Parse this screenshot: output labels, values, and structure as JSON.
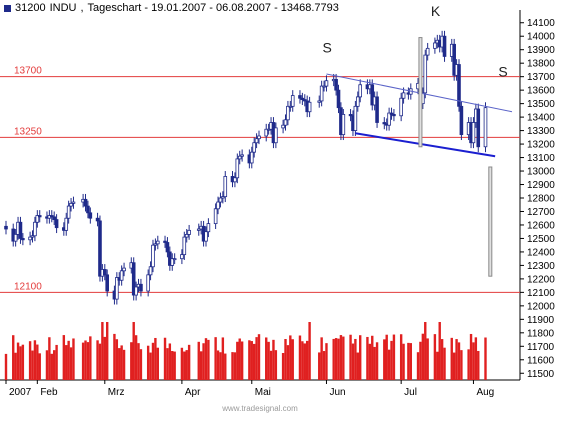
{
  "header": {
    "symbol": "31200",
    "name": "INDU",
    "period_label": "Tageschart - 19.01.2007 - 06.08.2007 - 13468.7793"
  },
  "footer": {
    "watermark": "www.tradesignal.com"
  },
  "colors": {
    "candle_body": "#1f2a8a",
    "level_line": "#e33b3b",
    "trend_line": "#5a63c8",
    "neckline": "#1b1fd0",
    "projection_bar": "#8a8a8a",
    "volume": "#e02020",
    "axis": "#000000"
  },
  "chart_data": {
    "type": "candlestick",
    "title": "INDU",
    "y_axis": {
      "position": "right",
      "ylim": [
        11450,
        14150
      ],
      "ticks": [
        11500,
        11600,
        11700,
        11800,
        11900,
        12000,
        12100,
        12200,
        12300,
        12400,
        12500,
        12600,
        12700,
        12800,
        12900,
        13000,
        13100,
        13200,
        13300,
        13400,
        13500,
        13600,
        13700,
        13800,
        13900,
        14000,
        14100
      ]
    },
    "x_axis": {
      "labels": [
        {
          "label": "2007",
          "date": "2007-01-19"
        },
        {
          "label": "Feb",
          "date": "2007-02-01"
        },
        {
          "label": "Mrz",
          "date": "2007-03-01"
        },
        {
          "label": "Apr",
          "date": "2007-04-02"
        },
        {
          "label": "Mai",
          "date": "2007-05-01"
        },
        {
          "label": "Jun",
          "date": "2007-06-01"
        },
        {
          "label": "Jul",
          "date": "2007-07-02"
        },
        {
          "label": "Aug",
          "date": "2007-08-01"
        }
      ],
      "range": [
        "2007-01-19",
        "2007-08-17"
      ]
    },
    "closes": [
      {
        "date": "2007-01-19",
        "close": 12570
      },
      {
        "date": "2007-01-22",
        "close": 12480
      },
      {
        "date": "2007-01-23",
        "close": 12530
      },
      {
        "date": "2007-01-24",
        "close": 12620
      },
      {
        "date": "2007-01-25",
        "close": 12500
      },
      {
        "date": "2007-01-26",
        "close": 12490
      },
      {
        "date": "2007-01-29",
        "close": 12510
      },
      {
        "date": "2007-01-30",
        "close": 12520
      },
      {
        "date": "2007-01-31",
        "close": 12620
      },
      {
        "date": "2007-02-01",
        "close": 12670
      },
      {
        "date": "2007-02-02",
        "close": 12660
      },
      {
        "date": "2007-02-05",
        "close": 12650
      },
      {
        "date": "2007-02-06",
        "close": 12670
      },
      {
        "date": "2007-02-07",
        "close": 12660
      },
      {
        "date": "2007-02-08",
        "close": 12640
      },
      {
        "date": "2007-02-09",
        "close": 12580
      },
      {
        "date": "2007-02-12",
        "close": 12560
      },
      {
        "date": "2007-02-13",
        "close": 12650
      },
      {
        "date": "2007-02-14",
        "close": 12740
      },
      {
        "date": "2007-02-15",
        "close": 12760
      },
      {
        "date": "2007-02-16",
        "close": 12770
      },
      {
        "date": "2007-02-20",
        "close": 12790
      },
      {
        "date": "2007-02-21",
        "close": 12740
      },
      {
        "date": "2007-02-22",
        "close": 12690
      },
      {
        "date": "2007-02-23",
        "close": 12650
      },
      {
        "date": "2007-02-26",
        "close": 12630
      },
      {
        "date": "2007-02-27",
        "close": 12220
      },
      {
        "date": "2007-02-28",
        "close": 12270
      },
      {
        "date": "2007-03-01",
        "close": 12230
      },
      {
        "date": "2007-03-02",
        "close": 12110
      },
      {
        "date": "2007-03-05",
        "close": 12050
      },
      {
        "date": "2007-03-06",
        "close": 12210
      },
      {
        "date": "2007-03-07",
        "close": 12190
      },
      {
        "date": "2007-03-08",
        "close": 12260
      },
      {
        "date": "2007-03-09",
        "close": 12280
      },
      {
        "date": "2007-03-12",
        "close": 12320
      },
      {
        "date": "2007-03-13",
        "close": 12080
      },
      {
        "date": "2007-03-14",
        "close": 12140
      },
      {
        "date": "2007-03-15",
        "close": 12160
      },
      {
        "date": "2007-03-16",
        "close": 12110
      },
      {
        "date": "2007-03-19",
        "close": 12230
      },
      {
        "date": "2007-03-20",
        "close": 12290
      },
      {
        "date": "2007-03-21",
        "close": 12450
      },
      {
        "date": "2007-03-22",
        "close": 12460
      },
      {
        "date": "2007-03-23",
        "close": 12480
      },
      {
        "date": "2007-03-26",
        "close": 12470
      },
      {
        "date": "2007-03-27",
        "close": 12400
      },
      {
        "date": "2007-03-28",
        "close": 12300
      },
      {
        "date": "2007-03-29",
        "close": 12350
      },
      {
        "date": "2007-03-30",
        "close": 12350
      },
      {
        "date": "2007-04-02",
        "close": 12380
      },
      {
        "date": "2007-04-03",
        "close": 12510
      },
      {
        "date": "2007-04-04",
        "close": 12530
      },
      {
        "date": "2007-04-05",
        "close": 12560
      },
      {
        "date": "2007-04-09",
        "close": 12570
      },
      {
        "date": "2007-04-10",
        "close": 12590
      },
      {
        "date": "2007-04-11",
        "close": 12480
      },
      {
        "date": "2007-04-12",
        "close": 12550
      },
      {
        "date": "2007-04-13",
        "close": 12610
      },
      {
        "date": "2007-04-16",
        "close": 12720
      },
      {
        "date": "2007-04-17",
        "close": 12770
      },
      {
        "date": "2007-04-18",
        "close": 12800
      },
      {
        "date": "2007-04-19",
        "close": 12810
      },
      {
        "date": "2007-04-20",
        "close": 12960
      },
      {
        "date": "2007-04-23",
        "close": 12920
      },
      {
        "date": "2007-04-24",
        "close": 12950
      },
      {
        "date": "2007-04-25",
        "close": 13090
      },
      {
        "date": "2007-04-26",
        "close": 13110
      },
      {
        "date": "2007-04-27",
        "close": 13120
      },
      {
        "date": "2007-04-30",
        "close": 13060
      },
      {
        "date": "2007-05-01",
        "close": 13140
      },
      {
        "date": "2007-05-02",
        "close": 13210
      },
      {
        "date": "2007-05-03",
        "close": 13240
      },
      {
        "date": "2007-05-04",
        "close": 13260
      },
      {
        "date": "2007-05-07",
        "close": 13310
      },
      {
        "date": "2007-05-08",
        "close": 13310
      },
      {
        "date": "2007-05-09",
        "close": 13360
      },
      {
        "date": "2007-05-10",
        "close": 13210
      },
      {
        "date": "2007-05-11",
        "close": 13320
      },
      {
        "date": "2007-05-14",
        "close": 13340
      },
      {
        "date": "2007-05-15",
        "close": 13380
      },
      {
        "date": "2007-05-16",
        "close": 13480
      },
      {
        "date": "2007-05-17",
        "close": 13480
      },
      {
        "date": "2007-05-18",
        "close": 13560
      },
      {
        "date": "2007-05-21",
        "close": 13540
      },
      {
        "date": "2007-05-22",
        "close": 13530
      },
      {
        "date": "2007-05-23",
        "close": 13520
      },
      {
        "date": "2007-05-24",
        "close": 13440
      },
      {
        "date": "2007-05-25",
        "close": 13510
      },
      {
        "date": "2007-05-29",
        "close": 13520
      },
      {
        "date": "2007-05-30",
        "close": 13630
      },
      {
        "date": "2007-05-31",
        "close": 13630
      },
      {
        "date": "2007-06-01",
        "close": 13670
      },
      {
        "date": "2007-06-04",
        "close": 13680
      },
      {
        "date": "2007-06-05",
        "close": 13600
      },
      {
        "date": "2007-06-06",
        "close": 13470
      },
      {
        "date": "2007-06-07",
        "close": 13270
      },
      {
        "date": "2007-06-08",
        "close": 13420
      },
      {
        "date": "2007-06-11",
        "close": 13410
      },
      {
        "date": "2007-06-12",
        "close": 13300
      },
      {
        "date": "2007-06-13",
        "close": 13480
      },
      {
        "date": "2007-06-14",
        "close": 13550
      },
      {
        "date": "2007-06-15",
        "close": 13640
      },
      {
        "date": "2007-06-18",
        "close": 13610
      },
      {
        "date": "2007-06-19",
        "close": 13640
      },
      {
        "date": "2007-06-20",
        "close": 13490
      },
      {
        "date": "2007-06-21",
        "close": 13550
      },
      {
        "date": "2007-06-22",
        "close": 13360
      },
      {
        "date": "2007-06-25",
        "close": 13350
      },
      {
        "date": "2007-06-26",
        "close": 13340
      },
      {
        "date": "2007-06-27",
        "close": 13430
      },
      {
        "date": "2007-06-28",
        "close": 13420
      },
      {
        "date": "2007-06-29",
        "close": 13410
      },
      {
        "date": "2007-07-02",
        "close": 13540
      },
      {
        "date": "2007-07-03",
        "close": 13580
      },
      {
        "date": "2007-07-05",
        "close": 13570
      },
      {
        "date": "2007-07-06",
        "close": 13610
      },
      {
        "date": "2007-07-09",
        "close": 13650
      },
      {
        "date": "2007-07-10",
        "close": 13500
      },
      {
        "date": "2007-07-11",
        "close": 13580
      },
      {
        "date": "2007-07-12",
        "close": 13860
      },
      {
        "date": "2007-07-13",
        "close": 13910
      },
      {
        "date": "2007-07-16",
        "close": 13950
      },
      {
        "date": "2007-07-17",
        "close": 13970
      },
      {
        "date": "2007-07-18",
        "close": 13920
      },
      {
        "date": "2007-07-19",
        "close": 14000
      },
      {
        "date": "2007-07-20",
        "close": 13850
      },
      {
        "date": "2007-07-23",
        "close": 13940
      },
      {
        "date": "2007-07-24",
        "close": 13710
      },
      {
        "date": "2007-07-25",
        "close": 13790
      },
      {
        "date": "2007-07-26",
        "close": 13480
      },
      {
        "date": "2007-07-27",
        "close": 13270
      },
      {
        "date": "2007-07-30",
        "close": 13360
      },
      {
        "date": "2007-07-31",
        "close": 13210
      },
      {
        "date": "2007-08-01",
        "close": 13360
      },
      {
        "date": "2007-08-02",
        "close": 13460
      },
      {
        "date": "2007-08-03",
        "close": 13180
      },
      {
        "date": "2007-08-06",
        "close": 13470
      }
    ],
    "horizontal_levels": [
      {
        "value": 13700,
        "label": "13700"
      },
      {
        "value": 13250,
        "label": "13250"
      },
      {
        "value": 12100,
        "label": "12100"
      }
    ],
    "annotations": [
      {
        "text": "S",
        "date": "2007-06-01",
        "value": 13880
      },
      {
        "text": "K",
        "date": "2007-07-16",
        "value": 14230
      },
      {
        "text": "S",
        "date": "2007-08-13",
        "value": 13700
      }
    ],
    "trend_lines": [
      {
        "name": "resistance",
        "from": {
          "date": "2007-06-01",
          "value": 13720
        },
        "to": {
          "date": "2007-08-17",
          "value": 13440
        }
      },
      {
        "name": "neckline",
        "from": {
          "date": "2007-06-13",
          "value": 13280
        },
        "to": {
          "date": "2007-08-10",
          "value": 13110
        }
      }
    ],
    "vertical_markers": [
      {
        "name": "head-height",
        "date": "2007-07-10",
        "from": 13180,
        "to": 13990
      },
      {
        "name": "price-target",
        "date": "2007-08-08",
        "from": 13030,
        "to": 12220
      }
    ],
    "volume_panel": {
      "note": "volume bars, unscaled"
    }
  }
}
